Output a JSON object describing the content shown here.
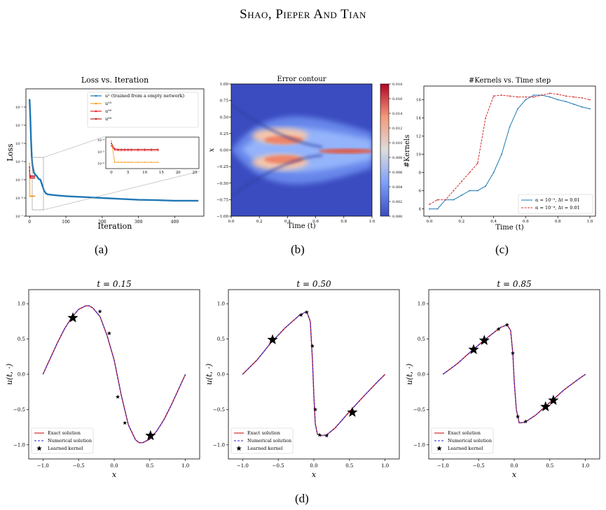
{
  "page": {
    "running_head": "Shao, Pieper And Tian",
    "labels": [
      "(a)",
      "(b)",
      "(c)",
      "(d)"
    ]
  },
  "chart_data": [
    {
      "type": "line",
      "title": "Loss vs. Iteration",
      "xlabel": "Iteration",
      "ylabel": "Loss",
      "yscale": "log",
      "xlim": [
        -10,
        480
      ],
      "ylim_exp": [
        -7,
        0
      ],
      "x_ticks": [
        "0",
        "100",
        "200",
        "300",
        "400"
      ],
      "y_ticks": [
        "10⁻⁷",
        "10⁻⁶",
        "10⁻⁵",
        "10⁻⁴",
        "10⁻³",
        "10⁻²",
        "10⁻¹"
      ],
      "series": [
        {
          "name": "u¹ (trained from a empty network)",
          "color": "#1f77b4",
          "x": [
            0,
            2,
            4,
            6,
            8,
            10,
            12,
            15,
            20,
            25,
            30,
            35,
            40,
            45,
            50,
            70,
            100,
            150,
            200,
            250,
            300,
            350,
            400,
            465
          ],
          "log10_y": [
            -0.6,
            -1.5,
            -2.8,
            -3.7,
            -4.2,
            -4.4,
            -4.6,
            -4.7,
            -4.8,
            -4.95,
            -5.0,
            -5.3,
            -5.6,
            -5.75,
            -5.8,
            -5.85,
            -5.9,
            -5.95,
            -6.0,
            -6.05,
            -6.1,
            -6.12,
            -6.15,
            -6.15
          ]
        },
        {
          "name": "u¹⁵",
          "color": "#ff9f1c",
          "x": [
            0,
            1,
            2,
            3,
            4,
            5,
            6,
            8,
            10,
            12,
            14
          ],
          "log10_y": [
            -4.1,
            -5.9,
            -5.9,
            -5.9,
            -5.9,
            -5.9,
            -5.9,
            -5.9,
            -5.9,
            -5.9,
            -5.9
          ]
        },
        {
          "name": "u⁵⁰",
          "color": "#e8202a",
          "x": [
            0,
            1,
            2,
            3,
            4,
            5,
            6,
            8,
            10,
            12,
            14
          ],
          "log10_y": [
            -4.5,
            -4.85,
            -4.9,
            -4.9,
            -4.9,
            -4.9,
            -4.9,
            -4.9,
            -4.9,
            -4.9,
            -4.9
          ]
        },
        {
          "name": "u⁸⁵",
          "color": "#c21f1f",
          "x": [
            0,
            1,
            2,
            3,
            4,
            5,
            6,
            8,
            10,
            12,
            14
          ],
          "log10_y": [
            -4.3,
            -4.75,
            -4.8,
            -4.8,
            -4.8,
            -4.8,
            -4.8,
            -4.8,
            -4.8,
            -4.8,
            -4.8
          ]
        }
      ],
      "inset": {
        "x_ticks": [
          "0",
          "5",
          "10",
          "15",
          "20",
          "25"
        ],
        "y_ticks": [
          "10⁻⁴",
          "10⁻⁵",
          "10⁻⁶"
        ]
      }
    },
    {
      "type": "heatmap",
      "title": "Error contour",
      "xlabel": "Time (t)",
      "ylabel": "x",
      "x_ticks": [
        "0.0",
        "0.2",
        "0.4",
        "0.6",
        "0.8",
        "1.0"
      ],
      "y_ticks": [
        "1.00",
        "0.75",
        "0.50",
        "0.25",
        "0.00",
        "−0.25",
        "−0.50",
        "−0.75",
        "−1.00"
      ],
      "colorbar_ticks": [
        "0.018",
        "0.016",
        "0.014",
        "0.012",
        "0.010",
        "0.008",
        "0.006",
        "0.004",
        "0.002",
        "0.000"
      ],
      "colorbar_range": [
        0,
        0.018
      ]
    },
    {
      "type": "line",
      "title": "#Kernels vs. Time step",
      "xlabel": "Time (t)",
      "ylabel": "#Kernels",
      "xlim": [
        0,
        1
      ],
      "ylim": [
        3.2,
        17.5
      ],
      "x_ticks": [
        "0.0",
        "0.2",
        "0.4",
        "0.6",
        "0.8",
        "1.0"
      ],
      "y_ticks": [
        "4",
        "6",
        "8",
        "10",
        "12",
        "14",
        "16"
      ],
      "series": [
        {
          "name": "α = 10⁻³, Δt = 0.01",
          "color": "#1f77b4",
          "x": [
            0,
            0.05,
            0.1,
            0.15,
            0.2,
            0.25,
            0.3,
            0.35,
            0.4,
            0.45,
            0.5,
            0.55,
            0.6,
            0.65,
            0.7,
            0.75,
            0.8,
            0.85,
            0.9,
            0.95,
            1.0
          ],
          "y": [
            4,
            4,
            5,
            5,
            5.5,
            6,
            6,
            6.5,
            8,
            10,
            13,
            15,
            16,
            16.5,
            16.5,
            16.3,
            16,
            15.8,
            15.5,
            15.2,
            15
          ]
        },
        {
          "name": "α = 10⁻⁴, Δt = 0.01",
          "color": "#d62728",
          "x": [
            0,
            0.05,
            0.1,
            0.15,
            0.2,
            0.25,
            0.3,
            0.35,
            0.4,
            0.45,
            0.5,
            0.55,
            0.6,
            0.65,
            0.7,
            0.75,
            0.8,
            0.85,
            0.9,
            0.95,
            1.0
          ],
          "y": [
            4.5,
            5,
            5,
            6,
            7,
            8,
            9,
            14,
            16.4,
            16.5,
            16.4,
            16.3,
            16.3,
            16.3,
            16.5,
            16.7,
            16.6,
            16.4,
            16.3,
            16.2,
            16
          ]
        }
      ]
    },
    {
      "type": "line",
      "title": "t = 0.15",
      "xlabel": "x",
      "ylabel": "u(t, ·)",
      "xlim": [
        -1.2,
        1.2
      ],
      "ylim": [
        -1.2,
        1.2
      ],
      "x_ticks": [
        "−1.0",
        "−0.5",
        "0.0",
        "0.5",
        "1.0"
      ],
      "y_ticks": [
        "1.0",
        "0.5",
        "0.0",
        "−0.5",
        "−1.0"
      ],
      "legend": [
        "Exact solution",
        "Numerical solution",
        "Learned kernel"
      ],
      "x": [
        -1.0,
        -0.9,
        -0.8,
        -0.7,
        -0.6,
        -0.5,
        -0.4,
        -0.35,
        -0.3,
        -0.2,
        -0.1,
        0.0,
        0.1,
        0.2,
        0.3,
        0.35,
        0.4,
        0.5,
        0.6,
        0.7,
        0.8,
        0.9,
        1.0
      ],
      "y": [
        0.0,
        0.22,
        0.44,
        0.64,
        0.8,
        0.92,
        0.97,
        0.97,
        0.94,
        0.82,
        0.55,
        0.2,
        -0.3,
        -0.72,
        -0.93,
        -0.97,
        -0.97,
        -0.92,
        -0.8,
        -0.64,
        -0.44,
        -0.22,
        0.0
      ],
      "kernels": [
        {
          "x": -0.58,
          "y": 0.8,
          "size": "large"
        },
        {
          "x": -0.2,
          "y": 0.89,
          "size": "small"
        },
        {
          "x": -0.07,
          "y": 0.58,
          "size": "small"
        },
        {
          "x": 0.05,
          "y": -0.32,
          "size": "small"
        },
        {
          "x": 0.15,
          "y": -0.69,
          "size": "small"
        },
        {
          "x": 0.51,
          "y": -0.87,
          "size": "large"
        }
      ]
    },
    {
      "type": "line",
      "title": "t = 0.50",
      "xlabel": "x",
      "ylabel": "u(t, ·)",
      "xlim": [
        -1.2,
        1.2
      ],
      "ylim": [
        -1.2,
        1.2
      ],
      "x_ticks": [
        "−1.0",
        "−0.5",
        "0.0",
        "0.5",
        "1.0"
      ],
      "y_ticks": [
        "1.0",
        "0.5",
        "0.0",
        "−0.5",
        "−1.0"
      ],
      "legend": [
        "Exact solution",
        "Numerical solution",
        "Learned kernel"
      ],
      "x": [
        -1.0,
        -0.8,
        -0.6,
        -0.4,
        -0.2,
        -0.1,
        -0.05,
        -0.02,
        0.0,
        0.02,
        0.05,
        0.1,
        0.18,
        0.3,
        0.5,
        0.7,
        0.9,
        1.0
      ],
      "y": [
        0.0,
        0.2,
        0.45,
        0.66,
        0.84,
        0.89,
        0.75,
        0.2,
        -0.3,
        -0.7,
        -0.85,
        -0.87,
        -0.86,
        -0.76,
        -0.53,
        -0.31,
        -0.1,
        0.0
      ],
      "kernels": [
        {
          "x": -0.58,
          "y": 0.49,
          "size": "large"
        },
        {
          "x": -0.18,
          "y": 0.84,
          "size": "small"
        },
        {
          "x": -0.1,
          "y": 0.88,
          "size": "small"
        },
        {
          "x": -0.02,
          "y": 0.4,
          "size": "small"
        },
        {
          "x": 0.02,
          "y": -0.5,
          "size": "small"
        },
        {
          "x": 0.08,
          "y": -0.86,
          "size": "small"
        },
        {
          "x": 0.18,
          "y": -0.87,
          "size": "small"
        },
        {
          "x": 0.54,
          "y": -0.54,
          "size": "large"
        }
      ]
    },
    {
      "type": "line",
      "title": "t = 0.85",
      "xlabel": "x",
      "ylabel": "u(t, ·)",
      "xlim": [
        -1.2,
        1.2
      ],
      "ylim": [
        -1.2,
        1.2
      ],
      "x_ticks": [
        "−1.0",
        "−0.5",
        "0.0",
        "0.5",
        "1.0"
      ],
      "y_ticks": [
        "1.0",
        "0.5",
        "0.0",
        "−0.5",
        "−1.0"
      ],
      "legend": [
        "Exact solution",
        "Numerical solution",
        "Learned kernel"
      ],
      "x": [
        -1.0,
        -0.8,
        -0.6,
        -0.4,
        -0.2,
        -0.1,
        -0.05,
        -0.02,
        0.0,
        0.03,
        0.07,
        0.15,
        0.3,
        0.5,
        0.7,
        0.9,
        1.0
      ],
      "y": [
        0.0,
        0.15,
        0.33,
        0.5,
        0.66,
        0.7,
        0.62,
        0.3,
        -0.1,
        -0.5,
        -0.69,
        -0.68,
        -0.58,
        -0.4,
        -0.22,
        -0.07,
        0.0
      ],
      "kernels": [
        {
          "x": -0.57,
          "y": 0.35,
          "size": "large"
        },
        {
          "x": -0.42,
          "y": 0.48,
          "size": "large"
        },
        {
          "x": -0.22,
          "y": 0.64,
          "size": "small"
        },
        {
          "x": -0.1,
          "y": 0.7,
          "size": "small"
        },
        {
          "x": -0.02,
          "y": 0.3,
          "size": "small"
        },
        {
          "x": 0.05,
          "y": -0.6,
          "size": "small"
        },
        {
          "x": 0.16,
          "y": -0.67,
          "size": "small"
        },
        {
          "x": 0.44,
          "y": -0.46,
          "size": "large"
        },
        {
          "x": 0.55,
          "y": -0.37,
          "size": "large"
        }
      ]
    }
  ]
}
